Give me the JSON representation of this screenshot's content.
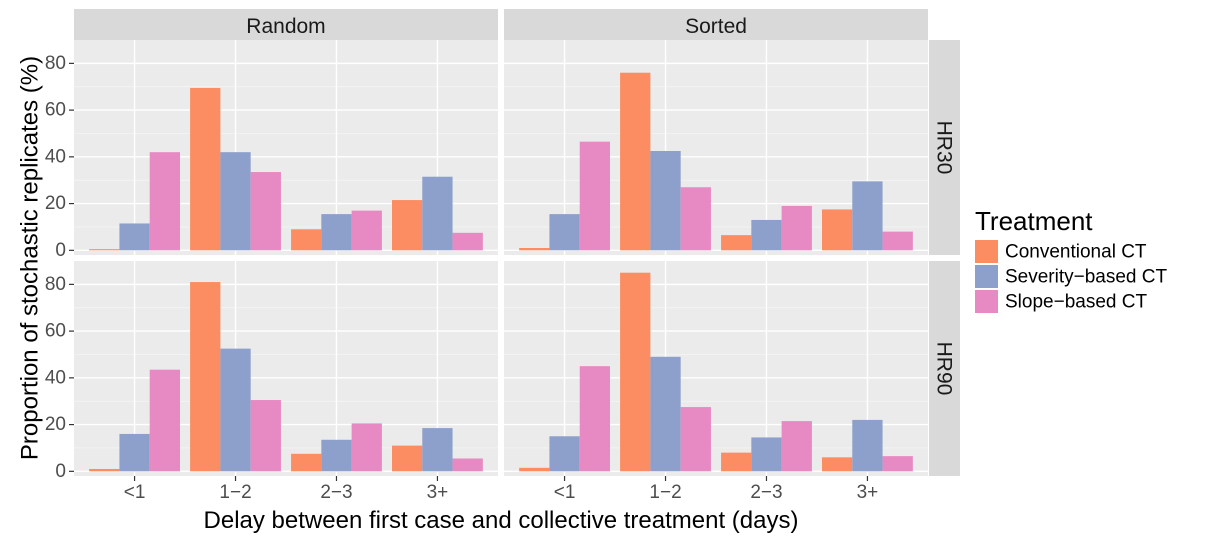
{
  "chart_data": {
    "type": "bar",
    "facet_columns": [
      "Random",
      "Sorted"
    ],
    "facet_rows": [
      "HR30",
      "HR90"
    ],
    "categories": [
      "<1",
      "1−2",
      "2−3",
      "3+"
    ],
    "xlabel": "Delay between first case and collective treatment (days)",
    "ylabel": "Proportion of stochastic replicates (%)",
    "ylim": [
      -2,
      90
    ],
    "yticks": [
      0,
      20,
      40,
      60,
      80
    ],
    "grid": true,
    "legend": {
      "title": "Treatment",
      "placement": "right",
      "entries": [
        {
          "name": "Conventional CT",
          "color": "#fc8d62"
        },
        {
          "name": "Severity−based CT",
          "color": "#8da0cb"
        },
        {
          "name": "Slope−based CT",
          "color": "#e78ac3"
        }
      ]
    },
    "panels": [
      {
        "column": "Random",
        "row": "HR30",
        "series": [
          {
            "name": "Conventional CT",
            "values": [
              0.5,
              69.5,
              9,
              21.5
            ]
          },
          {
            "name": "Severity−based CT",
            "values": [
              11.5,
              42,
              15.5,
              31.5
            ]
          },
          {
            "name": "Slope−based CT",
            "values": [
              42,
              33.5,
              17,
              7.5
            ]
          }
        ]
      },
      {
        "column": "Sorted",
        "row": "HR30",
        "series": [
          {
            "name": "Conventional CT",
            "values": [
              1,
              76,
              6.5,
              17.5
            ]
          },
          {
            "name": "Severity−based CT",
            "values": [
              15.5,
              42.5,
              13,
              29.5
            ]
          },
          {
            "name": "Slope−based CT",
            "values": [
              46.5,
              27,
              19,
              8
            ]
          }
        ]
      },
      {
        "column": "Random",
        "row": "HR90",
        "series": [
          {
            "name": "Conventional CT",
            "values": [
              1,
              81,
              7.5,
              11
            ]
          },
          {
            "name": "Severity−based CT",
            "values": [
              16,
              52.5,
              13.5,
              18.5
            ]
          },
          {
            "name": "Slope−based CT",
            "values": [
              43.5,
              30.5,
              20.5,
              5.5
            ]
          }
        ]
      },
      {
        "column": "Sorted",
        "row": "HR90",
        "series": [
          {
            "name": "Conventional CT",
            "values": [
              1.5,
              85,
              8,
              6
            ]
          },
          {
            "name": "Severity−based CT",
            "values": [
              15,
              49,
              14.5,
              22
            ]
          },
          {
            "name": "Slope−based CT",
            "values": [
              45,
              27.5,
              21.5,
              6.5
            ]
          }
        ]
      }
    ]
  },
  "style": {
    "panel_bg": "#ebebeb",
    "strip_bg": "#d9d9d9",
    "grid_major": "#ffffff",
    "text_color": "#000000",
    "tick_label_color": "#4d4d4d"
  }
}
